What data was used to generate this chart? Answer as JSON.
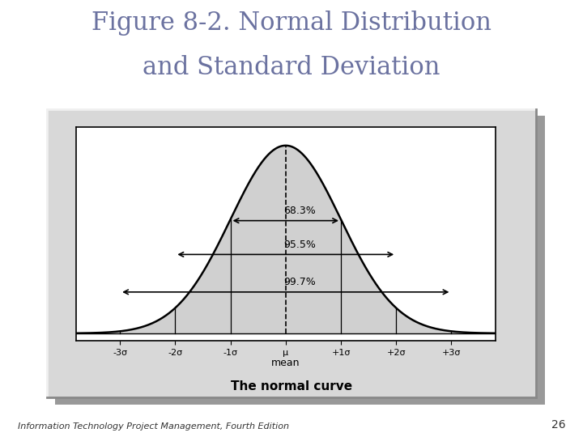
{
  "title_line1": "Figure 8-2. Normal Distribution",
  "title_line2": "and Standard Deviation",
  "title_color": "#6b72a0",
  "title_fontsize": 22,
  "subtitle": "The normal curve",
  "subtitle_fontsize": 11,
  "footer": "Information Technology Project Management, Fourth Edition",
  "footer_fontsize": 8,
  "page_number": "26",
  "curve_color": "#000000",
  "fill_color": "#d0d0d0",
  "annotation_68": "68.3%",
  "annotation_95": "95.5%",
  "annotation_99": "99.7%",
  "x_labels": [
    "-3σ",
    "-2σ",
    "-1σ",
    "μ",
    "+1σ",
    "+2σ",
    "+3σ"
  ],
  "x_label_bottom": "mean",
  "box_face": "#d8d8d8",
  "box_shadow": "#aaaaaa",
  "inner_bg": "#ffffff",
  "inner_border": "#000000",
  "background": "#ffffff",
  "ann_fontsize": 9,
  "tick_fontsize": 8,
  "xlabel_fontsize": 9
}
